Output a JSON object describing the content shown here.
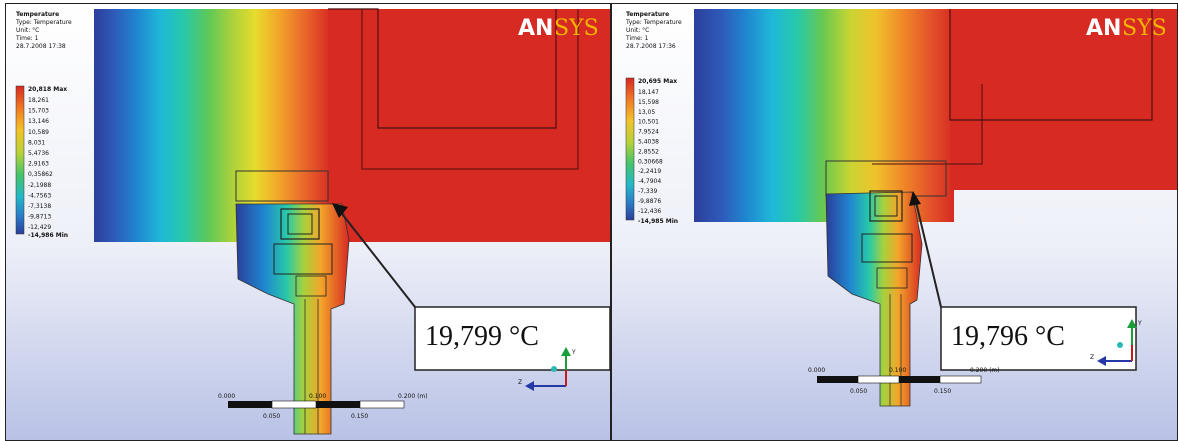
{
  "panels": [
    {
      "legend": {
        "title": "Temperature",
        "type": "Type: Temperature",
        "unit": "Unit: °C",
        "time": "Time: 1",
        "date": "28.7.2008 17:38",
        "max_label": "20,818 Max",
        "min_label": "-14,986 Min",
        "values": [
          "18,261",
          "15,703",
          "13,146",
          "10,589",
          "8,031",
          "5,4736",
          "2,9163",
          "0,35862",
          "-2,1988",
          "-4,7563",
          "-7,3138",
          "-9,8713",
          "-12,429"
        ]
      },
      "logo": {
        "an": "AN",
        "sys": "SYS"
      },
      "callout": "19,799 °C",
      "scale": {
        "tick_0": "0.000",
        "tick_1": "0.100",
        "tick_2": "0.200 (m)",
        "tick_3": "0.050",
        "tick_4": "0.150"
      },
      "axis": {
        "y": "Y",
        "z": "Z"
      }
    },
    {
      "legend": {
        "title": "Temperature",
        "type": "Type: Temperature",
        "unit": "Unit: °C",
        "time": "Time: 1",
        "date": "28.7.2008 17:36",
        "max_label": "20,695 Max",
        "min_label": "-14,985 Min",
        "values": [
          "18,147",
          "15,598",
          "13,05",
          "10,501",
          "7,9524",
          "5,4038",
          "2,8552",
          "0,30668",
          "-2,2419",
          "-4,7904",
          "-7,339",
          "-9,8876",
          "-12,436"
        ]
      },
      "logo": {
        "an": "AN",
        "sys": "SYS"
      },
      "callout": "19,796 °C",
      "scale": {
        "tick_0": "0.000",
        "tick_1": "0.100",
        "tick_2": "0.200 (m)",
        "tick_3": "0.050",
        "tick_4": "0.150"
      },
      "axis": {
        "y": "Y",
        "z": "Z"
      }
    }
  ],
  "colors": {
    "hot": "#d62a22",
    "cold": "#2b3f9a",
    "callout_border": "#222222",
    "axis_green": "#1a9e3a",
    "axis_blue": "#2538a8",
    "axis_red": "#c41a1a"
  }
}
